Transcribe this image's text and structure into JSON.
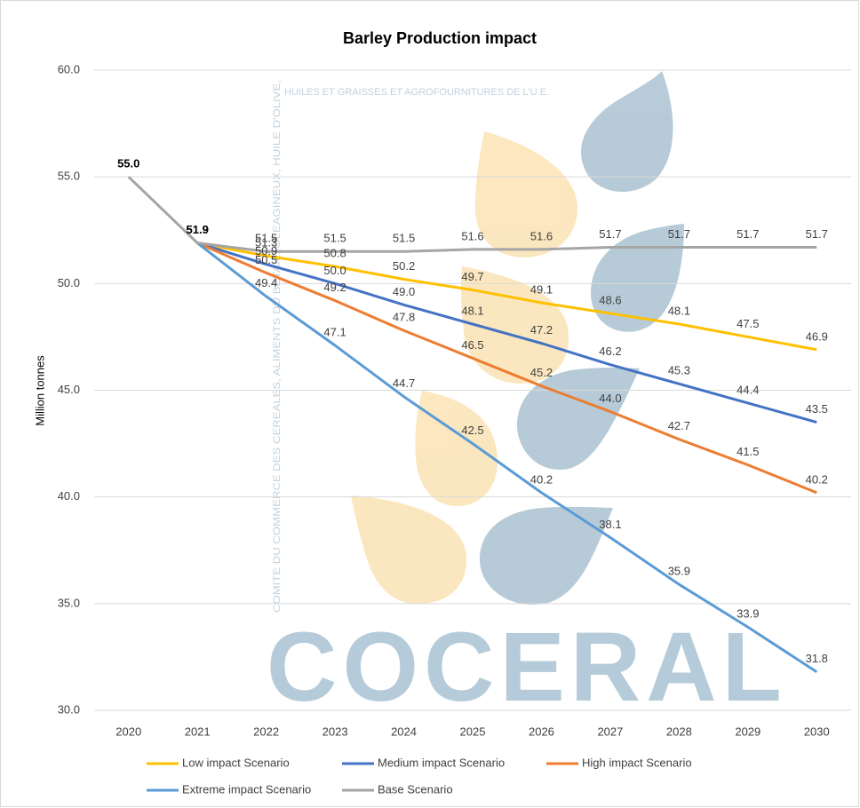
{
  "chart_data": {
    "type": "line",
    "title": "Barley Production impact",
    "y_label": "Million tonnes",
    "watermark": {
      "logo": "COCERAL",
      "line1": "HUILES ET GRAISSES ET AGROFOURNITURES DE L'U.E.",
      "line2": "COMITE DU COMMERCE DES CEREALES, ALIMENTS DU BETAIL, OLEAGINEUX, HUILE D'OLIVE,"
    },
    "categories": [
      "2020",
      "2021",
      "2022",
      "2023",
      "2024",
      "2025",
      "2026",
      "2027",
      "2028",
      "2029",
      "2030"
    ],
    "ylim": [
      30,
      60
    ],
    "yticks": [
      {
        "value": 30,
        "label": "30.0"
      },
      {
        "value": 35,
        "label": "35.0"
      },
      {
        "value": 40,
        "label": "40.0"
      },
      {
        "value": 45,
        "label": "45.0"
      },
      {
        "value": 50,
        "label": "50.0"
      },
      {
        "value": 55,
        "label": "55.0"
      },
      {
        "value": 60,
        "label": "60.0"
      }
    ],
    "grid": true,
    "legend": "bottom",
    "series": [
      {
        "name": "Low impact Scenario",
        "color": "#ffc000",
        "values": [
          null,
          51.9,
          51.3,
          50.8,
          50.2,
          49.7,
          49.1,
          48.6,
          48.1,
          47.5,
          46.9
        ],
        "value_labels": [
          null,
          "51.9",
          "51.3",
          "50.8",
          "50.2",
          "49.7",
          "49.1",
          "48.6",
          "48.1",
          "47.5",
          "46.9"
        ]
      },
      {
        "name": "Medium impact Scenario",
        "color": "#4472c4",
        "values": [
          null,
          51.9,
          50.9,
          50,
          49,
          48.1,
          47.2,
          46.2,
          45.3,
          44.4,
          43.5
        ],
        "value_labels": [
          null,
          "51.9",
          "50.9",
          "50.0",
          "49.0",
          "48.1",
          "47.2",
          "46.2",
          "45.3",
          "44.4",
          "43.5"
        ]
      },
      {
        "name": "High impact Scenario",
        "color": "#ed7d31",
        "values": [
          null,
          51.9,
          50.5,
          49.2,
          47.8,
          46.5,
          45.2,
          44,
          42.7,
          41.5,
          40.2
        ],
        "value_labels": [
          null,
          "51.9",
          "50.5",
          "49.2",
          "47.8",
          "46.5",
          "45.2",
          "44.0",
          "42.7",
          "41.5",
          "40.2"
        ]
      },
      {
        "name": "Extreme impact Scenario",
        "color": "#5b9bd5",
        "values": [
          null,
          51.9,
          49.4,
          47.1,
          44.7,
          42.5,
          40.2,
          38.1,
          35.9,
          33.9,
          31.8
        ],
        "value_labels": [
          null,
          "51.9",
          "49.4",
          "47.1",
          "44.7",
          "42.5",
          "40.2",
          "38.1",
          "35.9",
          "33.9",
          "31.8"
        ]
      },
      {
        "name": "Base Scenario",
        "color": "#a5a5a5",
        "values": [
          55,
          51.9,
          51.5,
          51.5,
          51.5,
          51.6,
          51.6,
          51.7,
          51.7,
          51.7,
          51.7
        ],
        "value_labels": [
          "55.0",
          "51.9",
          "51.5",
          "51.5",
          "51.5",
          "51.6",
          "51.6",
          "51.7",
          "51.7",
          "51.7",
          "51.7"
        ]
      }
    ]
  }
}
